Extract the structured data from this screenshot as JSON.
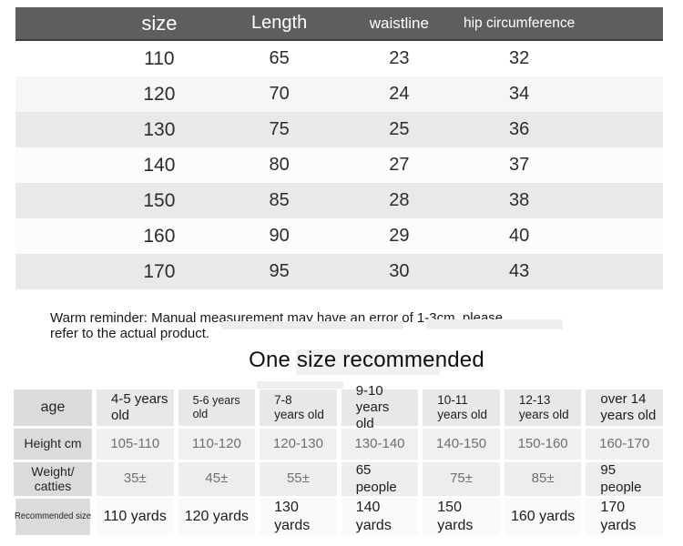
{
  "size_chart": {
    "columns": [
      "size",
      "Length",
      "waistline",
      "hip circumference"
    ],
    "rows": [
      [
        "110",
        "65",
        "23",
        "32"
      ],
      [
        "120",
        "70",
        "24",
        "34"
      ],
      [
        "130",
        "75",
        "25",
        "36"
      ],
      [
        "140",
        "80",
        "27",
        "37"
      ],
      [
        "150",
        "85",
        "28",
        "38"
      ],
      [
        "160",
        "90",
        "29",
        "40"
      ],
      [
        "170",
        "95",
        "30",
        "43"
      ]
    ]
  },
  "reminder": {
    "line1": "Warm reminder: Manual measurement may have an error of 1-3cm, please",
    "line2": "refer to the actual product."
  },
  "recommendation": {
    "title": "One size recommended",
    "rows": [
      {
        "label": "age",
        "key": "age",
        "cells": [
          "4-5 years\nold",
          "5-6 years\nold",
          "7-8\nyears old",
          "9-10 years\nold",
          "10-11\nyears old",
          "12-13\nyears old",
          "over 14\nyears old"
        ]
      },
      {
        "label": "Height cm",
        "key": "height",
        "cells": [
          "105-110",
          "110-120",
          "120-130",
          "130-140",
          "140-150",
          "150-160",
          "160-170"
        ]
      },
      {
        "label": "Weight/ catties",
        "key": "weight",
        "cells": [
          "35±",
          "45±",
          "55±",
          "65\npeople",
          "75±",
          "85±",
          "95\npeople"
        ]
      },
      {
        "label": "Recommended size",
        "key": "recsize",
        "cells": [
          "110 yards",
          "120 yards",
          "130\nyards",
          "140\nyards",
          "150\nyards",
          "160 yards",
          "170\nyards"
        ]
      }
    ]
  },
  "colors": {
    "header_bg": "#5e5e5e",
    "header_text": "#ffffff",
    "stripe_gray": "#e9e9e8",
    "label_cell_bg": "#dcdbd9",
    "age_cell_bg": "#e9e8e6",
    "light_cell_bg": "#f1f0ee",
    "recsize_cell_bg": "#fbfaf9",
    "muted_text": "#6f6f6f"
  }
}
